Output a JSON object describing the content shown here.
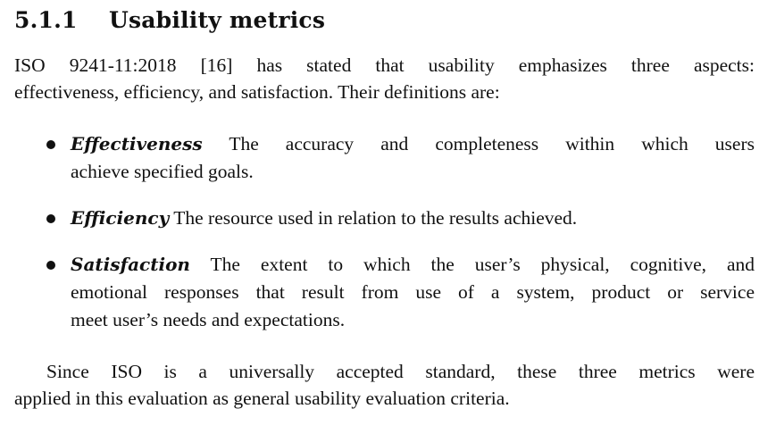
{
  "section": {
    "number": "5.1.1",
    "title": "Usability metrics"
  },
  "intro": {
    "line1": "ISO 9241-11:2018 [16] has stated that usability emphasizes three aspects:",
    "line2": "effectiveness, efficiency, and satisfaction. Their definitions are:"
  },
  "items": [
    {
      "term": "Effectiveness",
      "line1": "The accuracy and completeness within which users",
      "line2": "achieve specified goals."
    },
    {
      "term": "Efficiency",
      "line1": "The resource used in relation to the results achieved."
    },
    {
      "term": "Satisfaction",
      "line1": "The extent to which the user’s physical, cognitive, and",
      "line2": "emotional responses that result from use of a system, product or service",
      "line3": "meet user’s needs and expectations."
    }
  ],
  "closing": {
    "line1": "Since ISO is a universally accepted standard, these three metrics were",
    "line2": "applied in this evaluation as general usability evaluation criteria."
  }
}
